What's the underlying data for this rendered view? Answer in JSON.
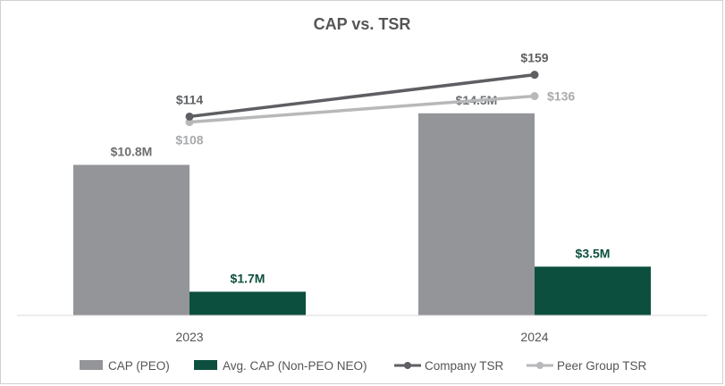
{
  "chart_data": {
    "type": "bar",
    "title": "CAP vs. TSR",
    "categories": [
      "2023",
      "2024"
    ],
    "bar_series": [
      {
        "name": "CAP (PEO)",
        "values": [
          10.8,
          14.5
        ],
        "labels": [
          "$10.8M",
          "$14.5M"
        ],
        "color": "#939598",
        "label_color": "#6d6e71"
      },
      {
        "name": "Avg. CAP (Non-PEO NEO)",
        "values": [
          1.7,
          3.5
        ],
        "labels": [
          "$1.7M",
          "$3.5M"
        ],
        "color": "#0d4f3f",
        "label_color": "#0d4f3f"
      }
    ],
    "bar_ylim": [
      0,
      20
    ],
    "line_series": [
      {
        "name": "Company TSR",
        "values": [
          114,
          159
        ],
        "labels": [
          "$114",
          "$159"
        ],
        "color": "#5e5f62",
        "label_color": "#5e5f62"
      },
      {
        "name": "Peer Group TSR",
        "values": [
          108,
          136
        ],
        "labels": [
          "$108",
          "$136"
        ],
        "color": "#b7b8ba",
        "label_color": "#a9aaac"
      }
    ],
    "line_ylim": [
      -100,
      200
    ],
    "legend_position": "bottom",
    "grid": false
  }
}
